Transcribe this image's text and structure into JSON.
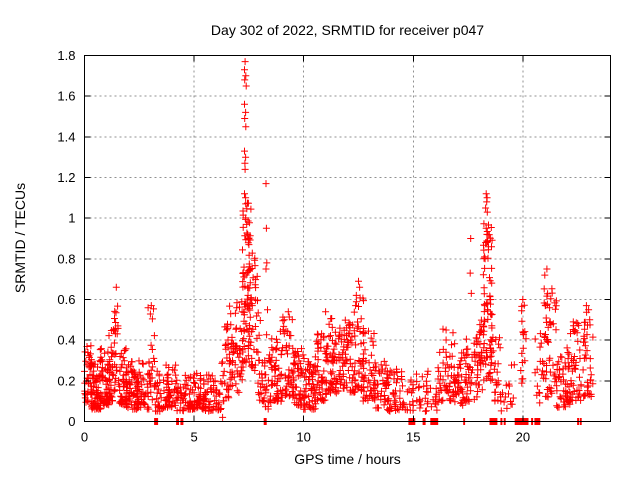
{
  "figure": {
    "title": "Day 302 of 2022, SRMTID for receiver p047",
    "xlabel": "GPS time / hours",
    "ylabel": "SRMTID / TECUs"
  },
  "chart_data": {
    "type": "scatter",
    "title": "Day 302 of 2022, SRMTID for receiver p047",
    "xlabel": "GPS time / hours",
    "ylabel": "SRMTID / TECUs",
    "xlim": [
      0,
      24
    ],
    "ylim": [
      0,
      1.8
    ],
    "xticks": [
      [
        0,
        "0"
      ],
      [
        5,
        "5"
      ],
      [
        10,
        "10"
      ],
      [
        15,
        "15"
      ],
      [
        20,
        "20"
      ]
    ],
    "yticks": [
      [
        0,
        "0"
      ],
      [
        0.2,
        "0.2"
      ],
      [
        0.4,
        "0.4"
      ],
      [
        0.6,
        "0.6"
      ],
      [
        0.8,
        "0.8"
      ],
      [
        1,
        "1"
      ],
      [
        1.2,
        "1.2"
      ],
      [
        1.4,
        "1.4"
      ],
      [
        1.6,
        "1.6"
      ],
      [
        1.8,
        "1.8"
      ]
    ],
    "grid": true,
    "legend": "none",
    "marker": "plus",
    "marker_color": "#ff0000",
    "grid_color": "#909090",
    "axis_color": "#000000",
    "clusters_format": [
      "x_start_hour",
      "x_end_hour",
      "n_points",
      "y_min",
      "y_max",
      "low_bias_power"
    ],
    "clusters": [
      [
        0.0,
        0.35,
        45,
        0.08,
        0.38,
        1.6
      ],
      [
        0.3,
        0.75,
        55,
        0.06,
        0.32,
        1.6
      ],
      [
        0.7,
        1.15,
        55,
        0.08,
        0.36,
        1.6
      ],
      [
        1.1,
        1.35,
        30,
        0.1,
        0.5,
        1.5
      ],
      [
        1.33,
        1.55,
        22,
        0.15,
        0.66,
        1.2
      ],
      [
        1.55,
        1.95,
        45,
        0.08,
        0.36,
        1.6
      ],
      [
        1.9,
        2.45,
        55,
        0.06,
        0.3,
        1.6
      ],
      [
        2.4,
        2.95,
        45,
        0.06,
        0.3,
        1.6
      ],
      [
        2.9,
        3.2,
        22,
        0.1,
        0.57,
        1.3
      ],
      [
        3.2,
        3.65,
        28,
        0.05,
        0.26,
        1.6
      ],
      [
        3.6,
        4.2,
        45,
        0.07,
        0.3,
        1.6
      ],
      [
        4.2,
        4.65,
        28,
        0.05,
        0.26,
        1.6
      ],
      [
        4.6,
        5.45,
        60,
        0.06,
        0.24,
        1.6
      ],
      [
        5.4,
        6.25,
        60,
        0.05,
        0.24,
        1.6
      ],
      [
        6.25,
        6.65,
        30,
        0.1,
        0.48,
        1.4
      ],
      [
        6.6,
        7.05,
        40,
        0.14,
        0.62,
        1.3
      ],
      [
        7.05,
        7.25,
        18,
        0.2,
        0.6,
        1.3
      ],
      [
        7.2,
        7.6,
        85,
        0.28,
        1.08,
        1.15
      ],
      [
        7.55,
        7.9,
        32,
        0.25,
        0.85,
        1.3
      ],
      [
        7.9,
        8.15,
        20,
        0.1,
        0.55,
        1.4
      ],
      [
        8.15,
        8.55,
        26,
        0.06,
        0.45,
        1.5
      ],
      [
        8.5,
        9.05,
        50,
        0.1,
        0.46,
        1.5
      ],
      [
        9.0,
        9.55,
        45,
        0.12,
        0.52,
        1.5
      ],
      [
        9.5,
        10.05,
        50,
        0.08,
        0.36,
        1.6
      ],
      [
        10.0,
        10.55,
        50,
        0.06,
        0.3,
        1.6
      ],
      [
        10.5,
        11.05,
        50,
        0.1,
        0.44,
        1.5
      ],
      [
        11.0,
        11.35,
        32,
        0.14,
        0.52,
        1.4
      ],
      [
        11.3,
        11.85,
        50,
        0.14,
        0.46,
        1.5
      ],
      [
        11.8,
        12.35,
        50,
        0.14,
        0.5,
        1.5
      ],
      [
        12.3,
        12.75,
        38,
        0.14,
        0.62,
        1.4
      ],
      [
        12.7,
        13.25,
        42,
        0.1,
        0.46,
        1.5
      ],
      [
        13.2,
        13.85,
        42,
        0.06,
        0.3,
        1.6
      ],
      [
        13.8,
        14.55,
        42,
        0.05,
        0.26,
        1.6
      ],
      [
        14.5,
        15.0,
        16,
        0.05,
        0.22,
        1.5
      ],
      [
        14.95,
        15.65,
        20,
        0.05,
        0.24,
        1.5
      ],
      [
        15.6,
        16.25,
        24,
        0.05,
        0.3,
        1.5
      ],
      [
        16.2,
        16.95,
        50,
        0.1,
        0.46,
        1.5
      ],
      [
        16.9,
        17.45,
        40,
        0.08,
        0.36,
        1.6
      ],
      [
        17.4,
        17.95,
        36,
        0.1,
        0.42,
        1.5
      ],
      [
        17.9,
        18.2,
        28,
        0.12,
        0.52,
        1.4
      ],
      [
        18.2,
        18.6,
        75,
        0.2,
        1.0,
        1.15
      ],
      [
        18.55,
        19.0,
        26,
        0.1,
        0.42,
        1.5
      ],
      [
        19.0,
        19.65,
        15,
        0.05,
        0.3,
        1.5
      ],
      [
        19.9,
        20.15,
        13,
        0.18,
        0.62,
        1.0
      ],
      [
        20.5,
        20.85,
        12,
        0.08,
        0.45,
        1.4
      ],
      [
        20.85,
        21.55,
        58,
        0.12,
        0.66,
        1.4
      ],
      [
        21.5,
        22.15,
        48,
        0.07,
        0.38,
        1.6
      ],
      [
        22.1,
        22.85,
        52,
        0.1,
        0.5,
        1.5
      ],
      [
        22.8,
        23.2,
        30,
        0.12,
        0.57,
        1.3
      ]
    ],
    "points": [
      [
        7.33,
        1.77
      ],
      [
        7.3,
        1.73
      ],
      [
        7.36,
        1.7
      ],
      [
        7.31,
        1.68
      ],
      [
        7.38,
        1.65
      ],
      [
        7.3,
        1.56
      ],
      [
        7.35,
        1.52
      ],
      [
        7.31,
        1.49
      ],
      [
        7.36,
        1.45
      ],
      [
        7.3,
        1.33
      ],
      [
        7.35,
        1.3
      ],
      [
        7.32,
        1.27
      ],
      [
        7.33,
        1.24
      ],
      [
        7.3,
        1.12
      ],
      [
        7.35,
        1.1
      ],
      [
        8.28,
        1.17
      ],
      [
        8.3,
        0.95
      ],
      [
        8.32,
        0.78
      ],
      [
        8.28,
        0.75
      ],
      [
        8.35,
        0.55
      ],
      [
        18.33,
        1.12
      ],
      [
        18.37,
        1.1
      ],
      [
        18.35,
        1.08
      ],
      [
        18.3,
        1.05
      ],
      [
        18.38,
        1.03
      ],
      [
        18.33,
        0.95
      ],
      [
        18.36,
        0.92
      ],
      [
        18.3,
        0.88
      ],
      [
        18.28,
        0.8
      ],
      [
        17.62,
        0.9
      ],
      [
        17.6,
        0.73
      ],
      [
        17.65,
        0.63
      ],
      [
        12.5,
        0.69
      ],
      [
        12.55,
        0.66
      ],
      [
        12.4,
        0.62
      ],
      [
        6.3,
        0.02
      ],
      [
        9.3,
        0.54
      ],
      [
        11.0,
        0.54
      ],
      [
        1.45,
        0.66
      ],
      [
        3.05,
        0.57
      ],
      [
        16.5,
        0.45
      ],
      [
        20.0,
        0.6
      ],
      [
        20.0,
        0.44
      ],
      [
        20.02,
        0.36
      ],
      [
        19.98,
        0.29
      ],
      [
        20.0,
        0.21
      ],
      [
        21.1,
        0.75
      ],
      [
        21.0,
        0.72
      ],
      [
        22.9,
        0.57
      ],
      [
        23.0,
        0.55
      ],
      [
        23.05,
        0.5
      ]
    ],
    "zero_value_runs_hours": [
      [
        3.2,
        3.35
      ],
      [
        4.2,
        4.3
      ],
      [
        4.4,
        4.5
      ],
      [
        8.2,
        8.3
      ],
      [
        14.8,
        15.1
      ],
      [
        15.45,
        15.55
      ],
      [
        15.8,
        16.15
      ],
      [
        17.3,
        17.38
      ],
      [
        18.5,
        18.85
      ],
      [
        19.0,
        19.05
      ],
      [
        19.15,
        19.22
      ],
      [
        19.65,
        20.25
      ],
      [
        20.4,
        20.45
      ],
      [
        20.55,
        20.8
      ],
      [
        22.5,
        22.55
      ],
      [
        22.62,
        22.68
      ]
    ]
  }
}
